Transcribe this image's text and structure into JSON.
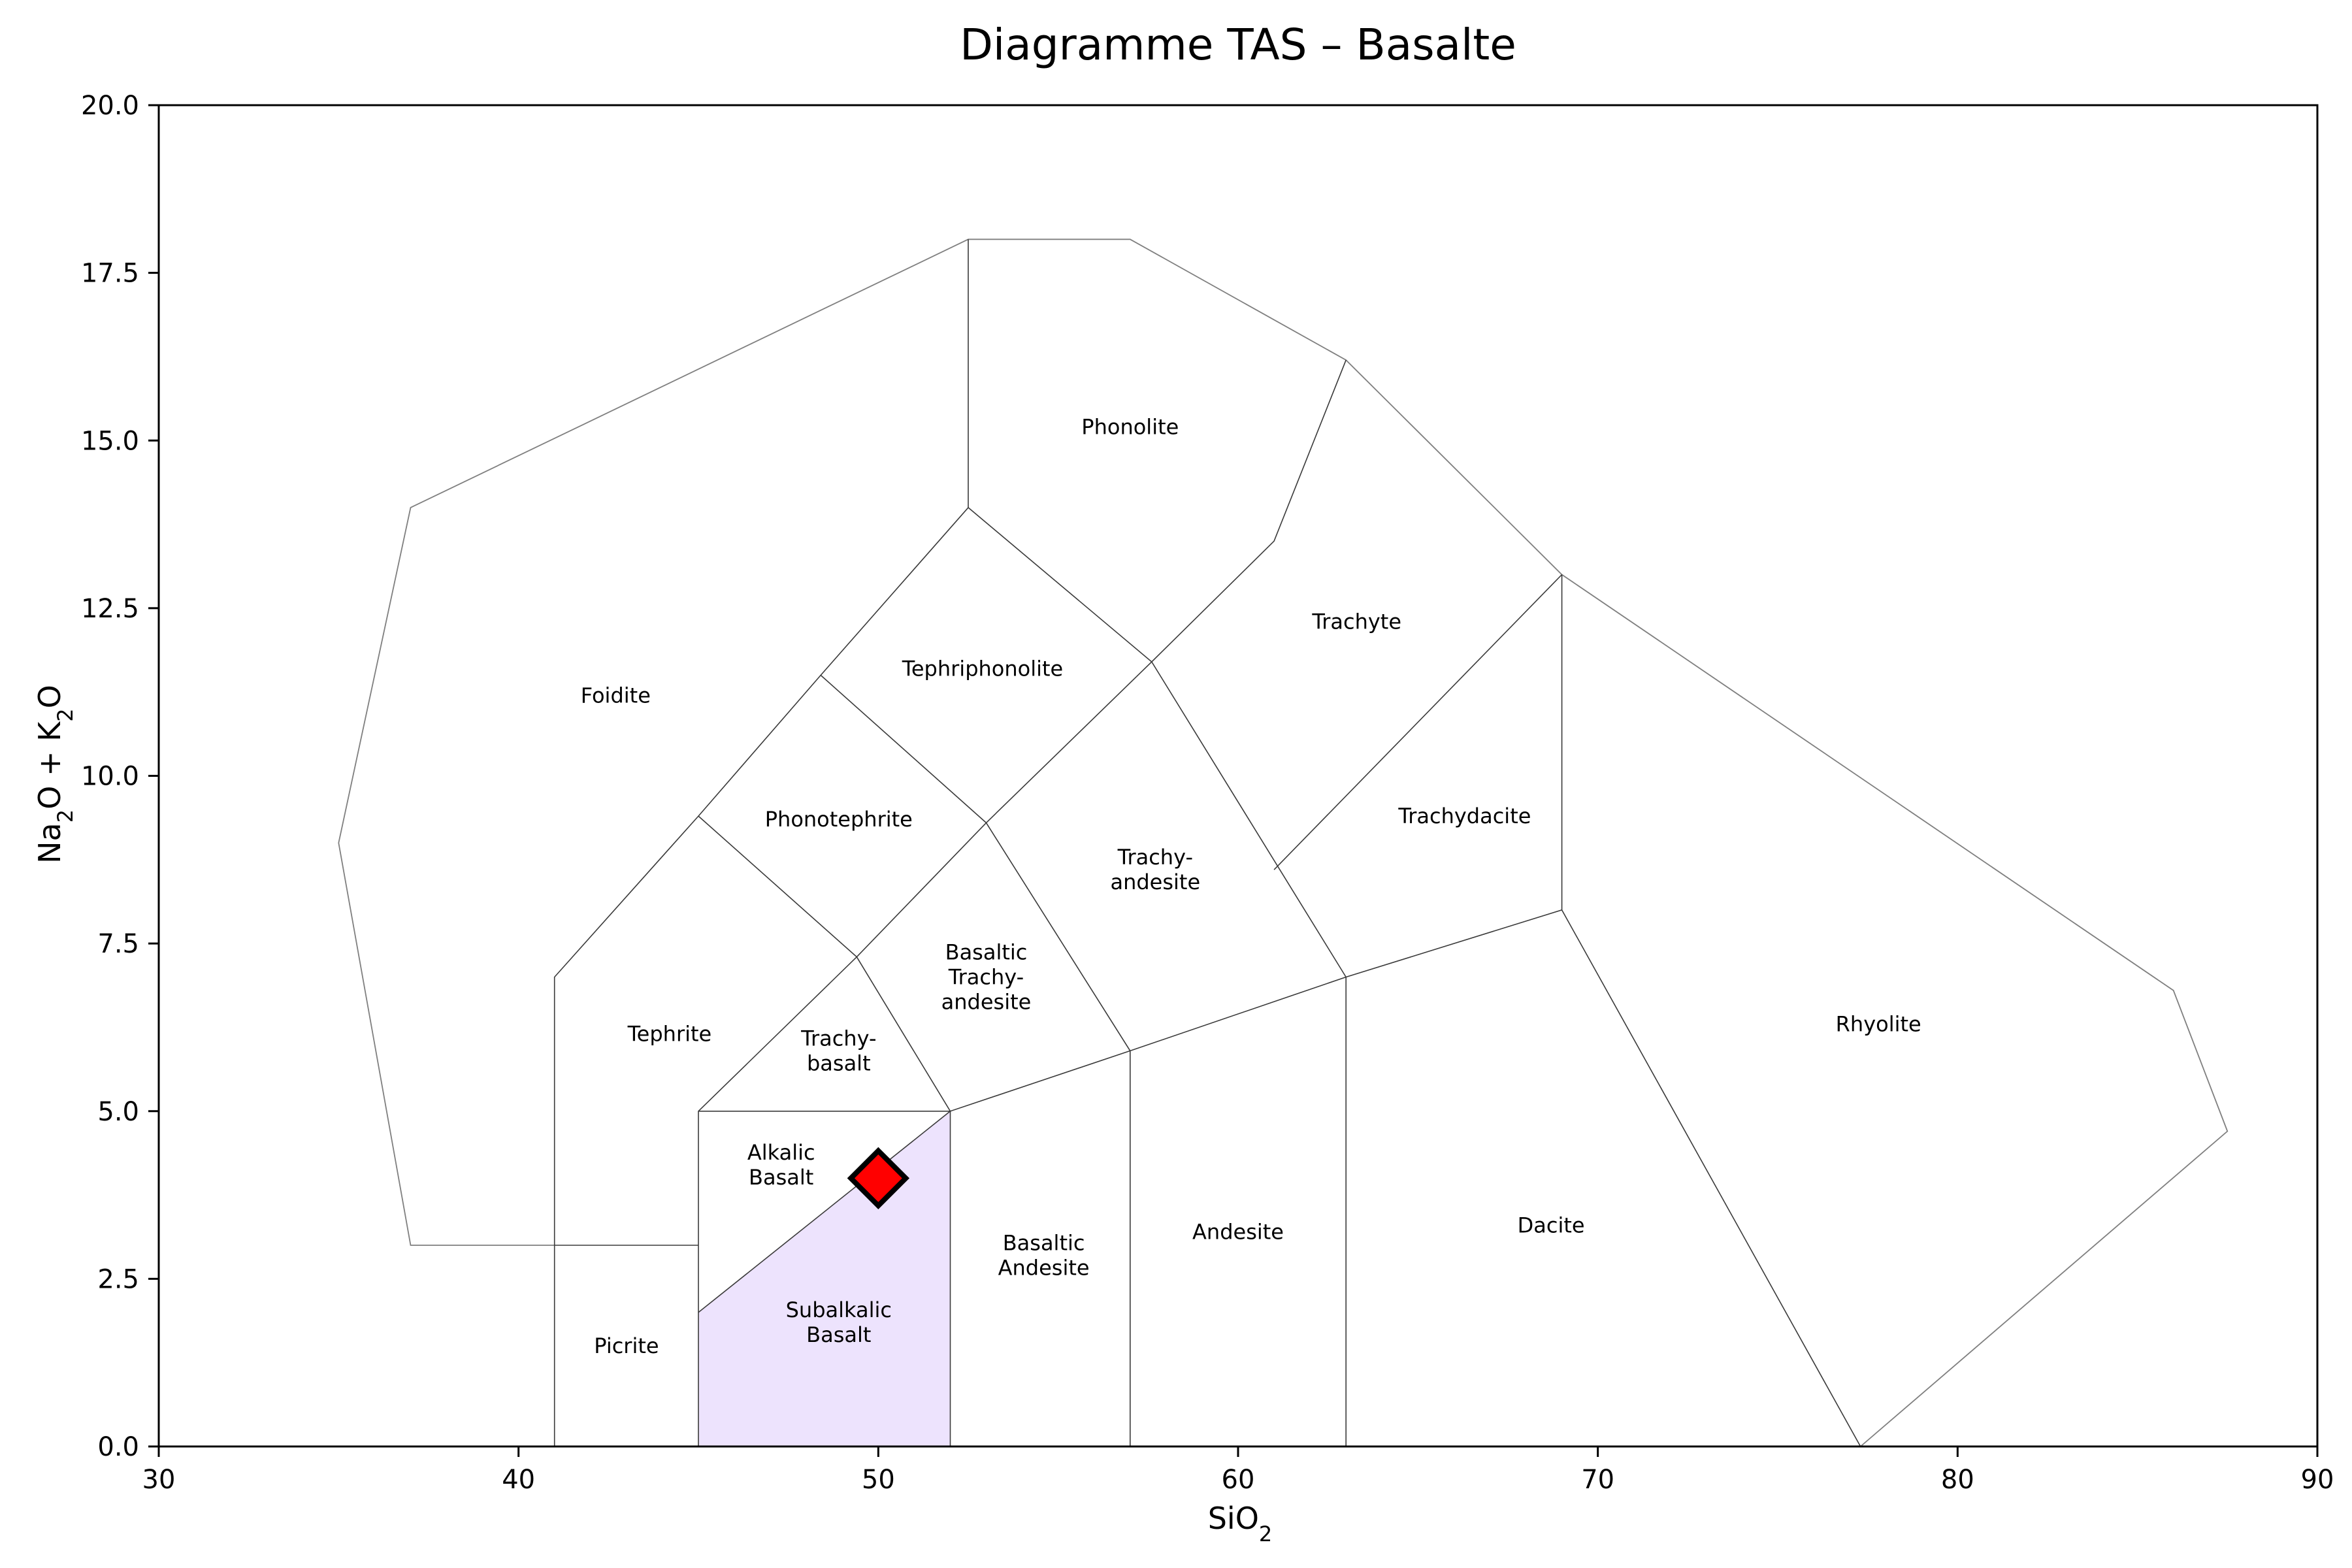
{
  "chart_data": {
    "type": "scatter",
    "title": "Diagramme TAS – Basalte",
    "xlabel": {
      "main": "SiO",
      "sub": "2"
    },
    "ylabel": {
      "p1": "Na",
      "s1": "2",
      "p2": "O + K",
      "s2": "2",
      "p3": "O"
    },
    "xlim": [
      30,
      90
    ],
    "ylim": [
      0,
      20
    ],
    "grid": false,
    "x_ticks": [
      30,
      40,
      50,
      60,
      70,
      80,
      90
    ],
    "x_tick_labels": [
      "30",
      "40",
      "50",
      "60",
      "70",
      "80",
      "90"
    ],
    "y_ticks": [
      0,
      2.5,
      5,
      7.5,
      10,
      12.5,
      15,
      17.5,
      20
    ],
    "y_tick_labels": [
      "0.0",
      "2.5",
      "5.0",
      "7.5",
      "10.0",
      "12.5",
      "15.0",
      "17.5",
      "20.0"
    ],
    "highlight_color": "#ede3fd",
    "marker_color": "#ff0000",
    "highlight_region": "Subalkalic Basalt",
    "outer_boundary": [
      [
        41,
        3
      ],
      [
        37,
        3
      ],
      [
        35,
        9
      ],
      [
        37,
        14
      ],
      [
        52.5,
        18
      ],
      [
        57,
        18
      ],
      [
        63,
        16.2
      ],
      [
        69,
        13
      ],
      [
        86,
        6.8
      ],
      [
        87.5,
        4.7
      ],
      [
        77.3,
        0
      ]
    ],
    "region_lines": [
      [
        [
          41,
          0
        ],
        [
          41,
          7
        ],
        [
          45,
          9.4
        ],
        [
          48.4,
          11.5
        ],
        [
          52.5,
          14
        ],
        [
          52.5,
          18
        ]
      ],
      [
        [
          41,
          3
        ],
        [
          45,
          3
        ]
      ],
      [
        [
          45,
          0
        ],
        [
          45,
          5
        ],
        [
          49.4,
          7.3
        ],
        [
          53,
          9.3
        ],
        [
          57.6,
          11.7
        ],
        [
          61,
          13.5
        ],
        [
          63,
          16.2
        ]
      ],
      [
        [
          45,
          5
        ],
        [
          52,
          5
        ],
        [
          49.4,
          7.3
        ],
        [
          45,
          9.4
        ]
      ],
      [
        [
          45,
          2
        ],
        [
          52,
          5
        ]
      ],
      [
        [
          52,
          0
        ],
        [
          52,
          5
        ],
        [
          57,
          5.9
        ],
        [
          63,
          7
        ],
        [
          69,
          8
        ],
        [
          69,
          13
        ]
      ],
      [
        [
          53,
          9.3
        ],
        [
          48.4,
          11.5
        ]
      ],
      [
        [
          52.5,
          14
        ],
        [
          57.6,
          11.7
        ],
        [
          63,
          7
        ]
      ],
      [
        [
          57,
          0
        ],
        [
          57,
          5.9
        ],
        [
          53,
          9.3
        ]
      ],
      [
        [
          63,
          0
        ],
        [
          63,
          7
        ]
      ],
      [
        [
          61,
          8.6
        ],
        [
          69,
          13
        ]
      ],
      [
        [
          69,
          8
        ],
        [
          77.3,
          0
        ]
      ]
    ],
    "subalkalic_polygon": [
      [
        45,
        0
      ],
      [
        45,
        2
      ],
      [
        52,
        5
      ],
      [
        52,
        0
      ]
    ],
    "regions": [
      {
        "name": "Foidite",
        "lines": [
          "Foidite"
        ],
        "x": 42.7,
        "y": 11.2
      },
      {
        "name": "Phonolite",
        "lines": [
          "Phonolite"
        ],
        "x": 57.0,
        "y": 15.2
      },
      {
        "name": "Tephriphonolite",
        "lines": [
          "Tephriphonolite"
        ],
        "x": 52.9,
        "y": 11.6
      },
      {
        "name": "Trachyte",
        "lines": [
          "Trachyte"
        ],
        "x": 63.3,
        "y": 12.3
      },
      {
        "name": "Phonotephrite",
        "lines": [
          "Phonotephrite"
        ],
        "x": 48.9,
        "y": 9.35
      },
      {
        "name": "Trachyandesite",
        "lines": [
          "Trachy-",
          "andesite"
        ],
        "x": 57.7,
        "y": 8.6
      },
      {
        "name": "Trachydacite",
        "lines": [
          "Trachydacite"
        ],
        "x": 66.3,
        "y": 9.4
      },
      {
        "name": "Basaltic Trachyandesite",
        "lines": [
          "Basaltic",
          "Trachy-",
          "andesite"
        ],
        "x": 53.0,
        "y": 7.0
      },
      {
        "name": "Tephrite",
        "lines": [
          "Tephrite"
        ],
        "x": 44.2,
        "y": 6.15
      },
      {
        "name": "Trachybasalt",
        "lines": [
          "Trachy-",
          "basalt"
        ],
        "x": 48.9,
        "y": 5.9
      },
      {
        "name": "Rhyolite",
        "lines": [
          "Rhyolite"
        ],
        "x": 77.8,
        "y": 6.3
      },
      {
        "name": "Alkalic Basalt",
        "lines": [
          "Alkalic",
          "Basalt"
        ],
        "x": 47.3,
        "y": 4.2
      },
      {
        "name": "Basaltic Andesite",
        "lines": [
          "Basaltic",
          "Andesite"
        ],
        "x": 54.6,
        "y": 2.85
      },
      {
        "name": "Andesite",
        "lines": [
          "Andesite"
        ],
        "x": 60.0,
        "y": 3.2
      },
      {
        "name": "Dacite",
        "lines": [
          "Dacite"
        ],
        "x": 68.7,
        "y": 3.3
      },
      {
        "name": "Subalkalic Basalt",
        "lines": [
          "Subalkalic",
          "Basalt"
        ],
        "x": 48.9,
        "y": 1.85
      },
      {
        "name": "Picrite",
        "lines": [
          "Picrite"
        ],
        "x": 43.0,
        "y": 1.5
      }
    ],
    "samples": [
      {
        "x": 50.0,
        "y": 4.0,
        "marker": "diamond"
      }
    ]
  }
}
